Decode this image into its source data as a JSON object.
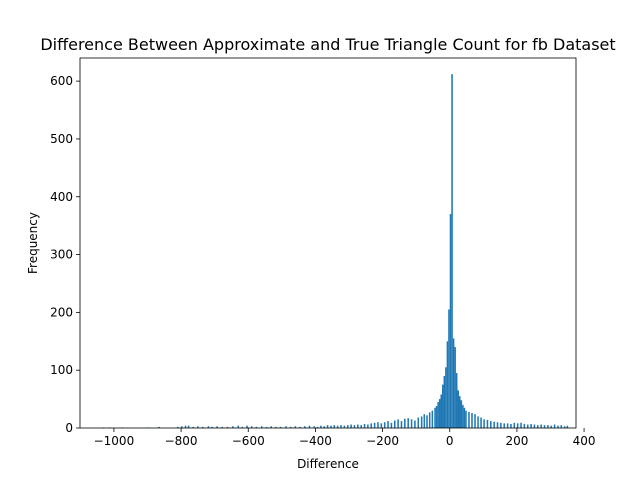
{
  "chart_data": {
    "type": "bar",
    "title": "Difference Between Approximate and True Triangle Count for fb Dataset",
    "xlabel": "Difference",
    "ylabel": "Frequency",
    "xlim": [
      -1101,
      376
    ],
    "ylim": [
      0,
      640
    ],
    "x_ticks": [
      -1000,
      -800,
      -600,
      -400,
      -200,
      0,
      200,
      400
    ],
    "x_tick_labels": [
      "−1000",
      "−800",
      "−600",
      "−400",
      "−200",
      "0",
      "200",
      "400"
    ],
    "y_ticks": [
      0,
      100,
      200,
      300,
      400,
      500,
      600
    ],
    "y_tick_labels": [
      "0",
      "100",
      "200",
      "300",
      "400",
      "500",
      "600"
    ],
    "grid": false,
    "legend": "none",
    "bar_color": "#1f77b4",
    "bin_width": 4.6,
    "bins": [
      [
        -1033,
        1
      ],
      [
        -1014,
        1
      ],
      [
        -978,
        1
      ],
      [
        -900,
        1
      ],
      [
        -868,
        2
      ],
      [
        -812,
        2
      ],
      [
        -800,
        3
      ],
      [
        -789,
        4
      ],
      [
        -780,
        4
      ],
      [
        -766,
        2
      ],
      [
        -752,
        3
      ],
      [
        -738,
        2
      ],
      [
        -721,
        3
      ],
      [
        -710,
        2
      ],
      [
        -695,
        3
      ],
      [
        -680,
        2
      ],
      [
        -664,
        2
      ],
      [
        -648,
        3
      ],
      [
        -632,
        4
      ],
      [
        -620,
        2
      ],
      [
        -606,
        4
      ],
      [
        -592,
        3
      ],
      [
        -578,
        2
      ],
      [
        -562,
        3
      ],
      [
        -548,
        2
      ],
      [
        -534,
        3
      ],
      [
        -520,
        2
      ],
      [
        -506,
        2
      ],
      [
        -490,
        3
      ],
      [
        -476,
        2
      ],
      [
        -462,
        3
      ],
      [
        -448,
        2
      ],
      [
        -434,
        3
      ],
      [
        -420,
        4
      ],
      [
        -406,
        3
      ],
      [
        -396,
        2
      ],
      [
        -386,
        4
      ],
      [
        -376,
        3
      ],
      [
        -366,
        5
      ],
      [
        -356,
        4
      ],
      [
        -346,
        5
      ],
      [
        -336,
        4
      ],
      [
        -326,
        5
      ],
      [
        -316,
        4
      ],
      [
        -306,
        5
      ],
      [
        -296,
        6
      ],
      [
        -286,
        5
      ],
      [
        -276,
        6
      ],
      [
        -266,
        5
      ],
      [
        -256,
        7
      ],
      [
        -246,
        6
      ],
      [
        -236,
        8
      ],
      [
        -226,
        9
      ],
      [
        -216,
        10
      ],
      [
        -206,
        8
      ],
      [
        -196,
        10
      ],
      [
        -186,
        12
      ],
      [
        -176,
        9
      ],
      [
        -166,
        13
      ],
      [
        -156,
        15
      ],
      [
        -146,
        12
      ],
      [
        -136,
        16
      ],
      [
        -126,
        17
      ],
      [
        -116,
        15
      ],
      [
        -106,
        13
      ],
      [
        -96,
        18
      ],
      [
        -86,
        20
      ],
      [
        -78,
        24
      ],
      [
        -70,
        22
      ],
      [
        -62,
        27
      ],
      [
        -54,
        30
      ],
      [
        -46,
        35
      ],
      [
        -41.4,
        38
      ],
      [
        -36.8,
        45
      ],
      [
        -32.2,
        50
      ],
      [
        -27.6,
        58
      ],
      [
        -23,
        75
      ],
      [
        -18.4,
        90
      ],
      [
        -13.8,
        105
      ],
      [
        -9.2,
        150
      ],
      [
        -4.6,
        205
      ],
      [
        0,
        370
      ],
      [
        4.6,
        612
      ],
      [
        9.2,
        155
      ],
      [
        13.8,
        140
      ],
      [
        18.4,
        95
      ],
      [
        23,
        65
      ],
      [
        27.6,
        55
      ],
      [
        32.2,
        48
      ],
      [
        36.8,
        40
      ],
      [
        41.4,
        35
      ],
      [
        46,
        30
      ],
      [
        55,
        28
      ],
      [
        64,
        26
      ],
      [
        73,
        24
      ],
      [
        82,
        20
      ],
      [
        91,
        18
      ],
      [
        100,
        15
      ],
      [
        110,
        14
      ],
      [
        120,
        12
      ],
      [
        130,
        11
      ],
      [
        140,
        10
      ],
      [
        150,
        9
      ],
      [
        160,
        8
      ],
      [
        170,
        8
      ],
      [
        180,
        7
      ],
      [
        190,
        9
      ],
      [
        200,
        8
      ],
      [
        210,
        9
      ],
      [
        220,
        7
      ],
      [
        230,
        6
      ],
      [
        240,
        7
      ],
      [
        250,
        6
      ],
      [
        260,
        5
      ],
      [
        270,
        6
      ],
      [
        280,
        5
      ],
      [
        290,
        5
      ],
      [
        300,
        4
      ],
      [
        310,
        6
      ],
      [
        320,
        4
      ],
      [
        330,
        5
      ],
      [
        340,
        3
      ],
      [
        348,
        4
      ]
    ]
  }
}
